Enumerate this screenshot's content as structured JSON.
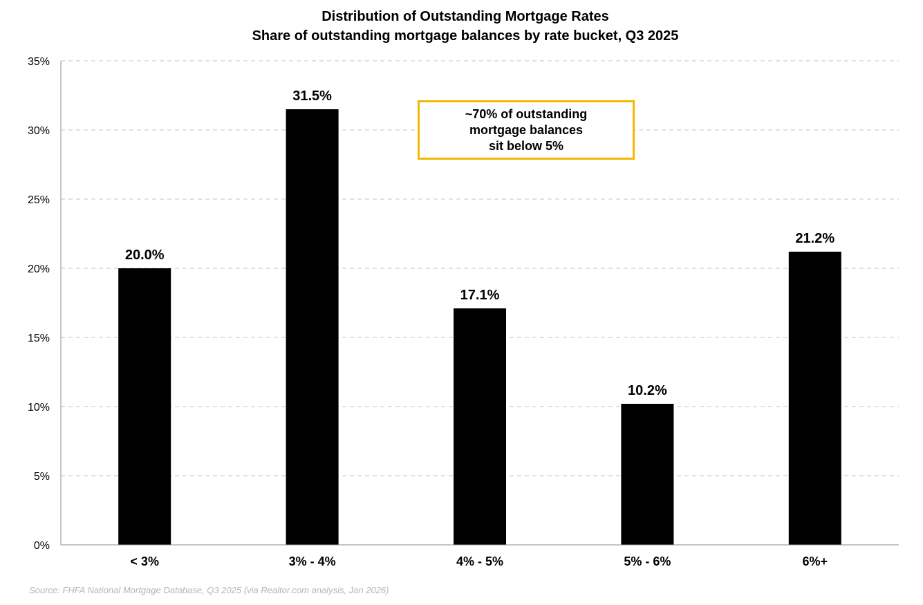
{
  "chart_data": {
    "type": "bar",
    "title": "Distribution of Outstanding Mortgage Rates",
    "subtitle": "Share of outstanding mortgage balances by rate bucket, Q3 2025",
    "categories": [
      "< 3%",
      "3% - 4%",
      "4% - 5%",
      "5% - 6%",
      "6%+"
    ],
    "values": [
      20.0,
      31.5,
      17.1,
      10.2,
      21.2
    ],
    "data_labels": [
      "20.0%",
      "31.5%",
      "17.1%",
      "10.2%",
      "21.2%"
    ],
    "ylim": [
      0,
      35
    ],
    "yticks": [
      0,
      5,
      10,
      15,
      20,
      25,
      30,
      35
    ],
    "ytick_labels": [
      "0%",
      "5%",
      "10%",
      "15%",
      "20%",
      "25%",
      "30%",
      "35%"
    ],
    "xlabel": "",
    "ylabel": "",
    "grid": "horizontal-dashed",
    "bar_color": "#000000",
    "annotation": {
      "lines": [
        "~70% of outstanding",
        "mortgage balances",
        "sit below 5%"
      ],
      "border_color": "#f5b800"
    },
    "source": "Source: FHFA National Mortgage Database, Q3 2025 (via Realtor.com analysis, Jan 2026)"
  }
}
